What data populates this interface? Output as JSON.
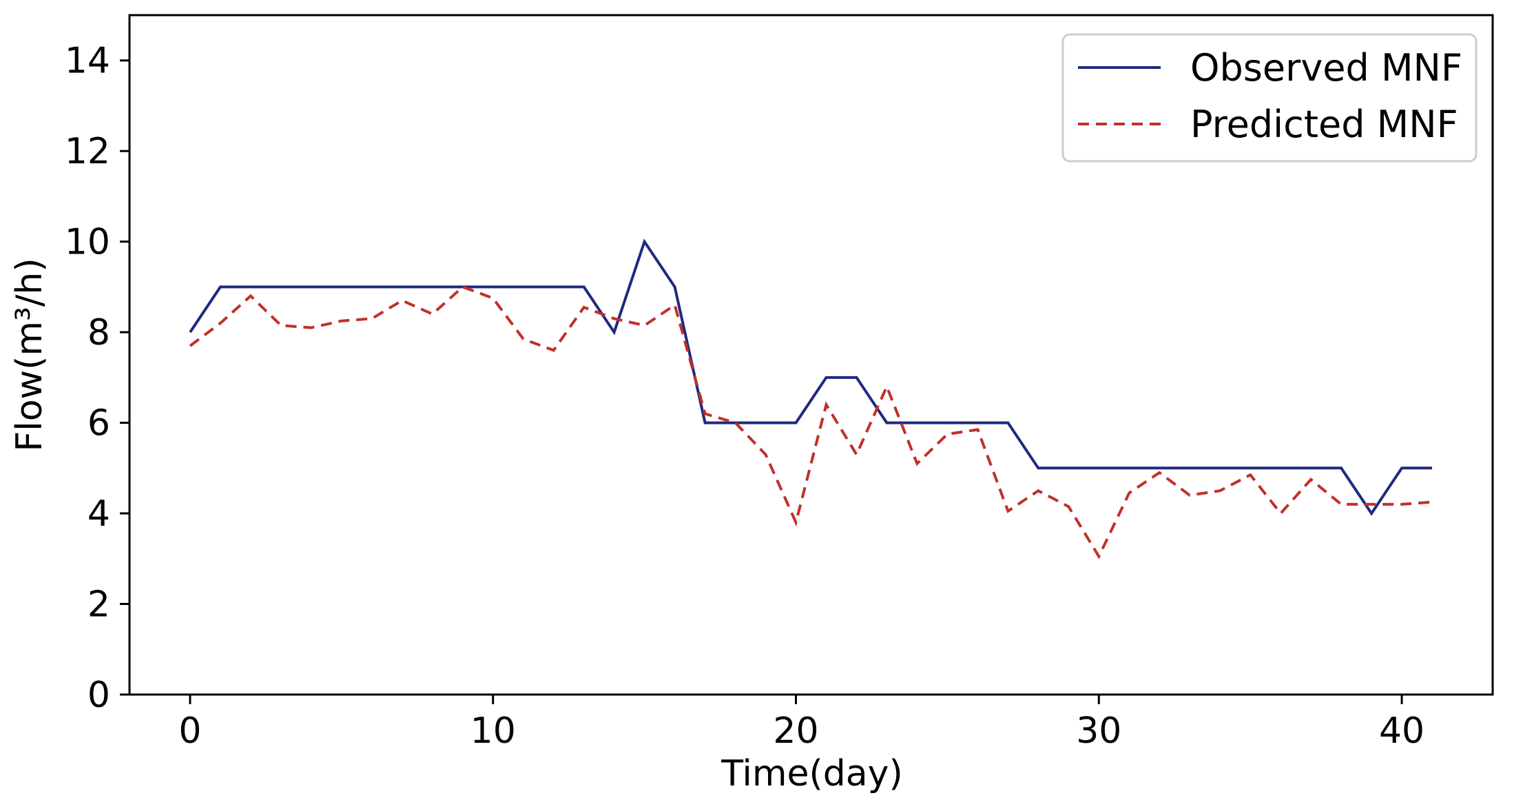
{
  "chart_data": {
    "type": "line",
    "title": "",
    "xlabel": "Time(day)",
    "ylabel": "Flow(m³/h)",
    "xlim": [
      -2,
      43
    ],
    "ylim": [
      0,
      15
    ],
    "xticks": [
      0,
      10,
      20,
      30,
      40
    ],
    "yticks": [
      0,
      2,
      4,
      6,
      8,
      10,
      12,
      14
    ],
    "grid": false,
    "legend_position": "top-right",
    "series": [
      {
        "name": "Observed MNF",
        "color": "#1f2a80",
        "style": "solid",
        "x": [
          0,
          1,
          2,
          3,
          4,
          5,
          6,
          7,
          8,
          9,
          10,
          11,
          12,
          13,
          14,
          15,
          16,
          17,
          18,
          19,
          20,
          21,
          22,
          23,
          24,
          25,
          26,
          27,
          28,
          29,
          30,
          31,
          32,
          33,
          34,
          35,
          36,
          37,
          38,
          39,
          40,
          41
        ],
        "values": [
          8,
          9,
          9,
          9,
          9,
          9,
          9,
          9,
          9,
          9,
          9,
          9,
          9,
          9,
          8,
          10,
          9,
          6,
          6,
          6,
          6,
          7,
          7,
          6,
          6,
          6,
          6,
          6,
          5,
          5,
          5,
          5,
          5,
          5,
          5,
          5,
          5,
          5,
          5,
          4,
          5,
          5
        ]
      },
      {
        "name": "Predicted MNF",
        "color": "#c0302a",
        "style": "dashed",
        "x": [
          0,
          1,
          2,
          3,
          4,
          5,
          6,
          7,
          8,
          9,
          10,
          11,
          12,
          13,
          14,
          15,
          16,
          17,
          18,
          19,
          20,
          21,
          22,
          23,
          24,
          25,
          26,
          27,
          28,
          29,
          30,
          31,
          32,
          33,
          34,
          35,
          36,
          37,
          38,
          39,
          40,
          41
        ],
        "values": [
          7.7,
          8.2,
          8.8,
          8.15,
          8.1,
          8.25,
          8.3,
          8.7,
          8.4,
          9.0,
          8.75,
          7.85,
          7.6,
          8.55,
          8.3,
          8.15,
          8.6,
          6.2,
          6.0,
          5.3,
          3.8,
          6.4,
          5.3,
          6.8,
          5.1,
          5.75,
          5.85,
          4.05,
          4.5,
          4.15,
          3.05,
          4.45,
          4.9,
          4.4,
          4.5,
          4.85,
          4.0,
          4.75,
          4.2,
          4.2,
          4.2,
          4.25
        ]
      }
    ]
  }
}
